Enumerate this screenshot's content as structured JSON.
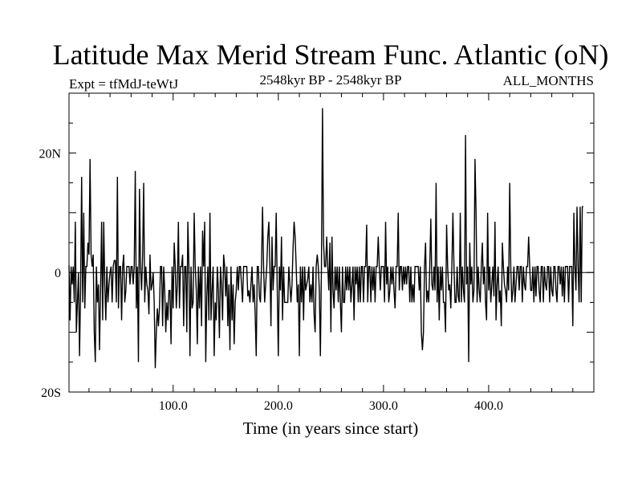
{
  "chart_data": {
    "type": "line",
    "title": "Latitude Max Merid Stream Func. Atlantic (oN)",
    "subtitle_left": "Expt = tfMdJ-teWtJ",
    "subtitle_center": "2548kyr BP - 2548kyr BP",
    "subtitle_right": "ALL_MONTHS",
    "xlabel": "Time (in years since start)",
    "ylabel": "",
    "xlim": [
      1,
      500
    ],
    "ylim": [
      -20,
      30
    ],
    "x_ticks": [
      100,
      200,
      300,
      400
    ],
    "x_tick_labels": [
      "100.0",
      "200.0",
      "300.0",
      "400.0"
    ],
    "y_ticks": [
      20,
      0,
      -20
    ],
    "y_tick_labels": [
      "20N",
      "0",
      "20S"
    ],
    "color": "#000000",
    "series": [
      {
        "x_start": 1,
        "x_step": 1,
        "values": [
          1.2,
          -8,
          1,
          -2,
          1,
          -5,
          8.5,
          -10,
          -5,
          0,
          -14,
          -3,
          16,
          -5,
          10,
          -6,
          1,
          1,
          5,
          3,
          19,
          3,
          1,
          3,
          -10,
          -15,
          1,
          -5,
          -2,
          -13,
          -3,
          8.5,
          -8,
          8.5,
          -2,
          -8,
          1,
          -5,
          -2,
          0,
          1,
          -5,
          1,
          2,
          2,
          -5,
          16,
          -6,
          1,
          1,
          -8,
          1,
          3,
          -5,
          -3,
          1,
          1,
          1,
          -2,
          1,
          1,
          -2,
          1,
          17,
          -6,
          1,
          -15,
          14,
          1,
          -3,
          3,
          15,
          -5,
          1,
          -2,
          -3,
          -7,
          3,
          -3,
          -2,
          0,
          -5,
          -16,
          -10,
          -6,
          -9,
          -6,
          1,
          1,
          -9,
          1,
          -3,
          -10,
          -5,
          -8,
          -3,
          -3,
          -12,
          1,
          -6,
          5,
          1,
          -6,
          -2,
          8.5,
          -6,
          1,
          1,
          3,
          -9,
          1,
          1,
          -10,
          8.5,
          1,
          -14,
          1,
          -6,
          -5,
          10,
          1,
          -3,
          -12,
          1,
          -6,
          1,
          -9,
          7,
          1,
          8.5,
          -15,
          -4,
          1,
          -8,
          10,
          -8,
          -3,
          1,
          -14,
          -5,
          -8,
          1,
          -3,
          -11,
          1,
          -2,
          -8,
          3,
          1,
          -4,
          1,
          -9,
          -2,
          -13,
          1,
          -8,
          -2,
          -12,
          -5,
          -3,
          1,
          -3,
          1,
          1,
          -2,
          -5,
          1,
          1,
          1,
          1,
          -4,
          -3,
          -5,
          -2,
          1,
          -5,
          -2,
          -7,
          -14,
          1,
          1,
          -4,
          -5,
          1,
          11,
          1,
          -5,
          -2,
          1,
          6,
          8.5,
          1,
          -9,
          6,
          -3,
          1,
          1,
          10,
          -3,
          -14,
          1,
          -3,
          6,
          -8,
          1,
          -5,
          -5,
          -5,
          -5,
          1,
          -2,
          -5,
          -2,
          4,
          8.5,
          6,
          1,
          -5,
          -2,
          -14,
          1,
          -5,
          1,
          -8,
          1,
          -3,
          -2,
          -1,
          1,
          -5,
          -2,
          -5,
          1,
          -7,
          -10,
          1,
          3,
          1,
          -3,
          -14,
          1,
          27.5,
          5,
          1,
          1,
          6,
          1,
          -3,
          5,
          -10,
          6,
          -3,
          -6,
          1,
          -3,
          1,
          -5,
          1,
          -5,
          -10,
          1,
          -5,
          -5,
          1,
          -3,
          1,
          -3,
          1,
          -5,
          -2,
          1,
          -8,
          1,
          -2,
          1,
          -5,
          1,
          -5,
          1,
          1,
          -5,
          1,
          1,
          8,
          -5,
          1,
          1,
          -5,
          1,
          -3,
          1,
          -5,
          1,
          1,
          6,
          1,
          -3,
          1,
          1,
          1,
          -5,
          8.5,
          -2,
          1,
          -5,
          -3,
          1,
          -2,
          1,
          -3,
          -6,
          1,
          1,
          10,
          -3,
          1,
          1,
          -3,
          1,
          -2,
          1,
          -2,
          1,
          1,
          -5,
          1,
          -5,
          -2,
          -5,
          1,
          1,
          1,
          1,
          -3,
          1,
          -10,
          -13,
          -10,
          1,
          5,
          -5,
          -3,
          -5,
          1,
          9,
          -2,
          -3,
          1,
          -3,
          15,
          -5,
          1,
          -8,
          1,
          -3,
          1,
          -5,
          -5,
          -10,
          8,
          1,
          -3,
          -2,
          -6,
          1,
          10,
          1,
          -5,
          -5,
          1,
          -4,
          -5,
          10,
          -5,
          1,
          -3,
          -5,
          23,
          -2,
          1,
          -15,
          5,
          -2,
          1,
          -5,
          -3,
          19,
          10,
          -5,
          1,
          -3,
          -5,
          1,
          5,
          -2,
          1,
          -5,
          -8,
          10,
          -3,
          1,
          -5,
          -2,
          1,
          -4,
          8.5,
          -8,
          -2,
          1,
          -5,
          -3,
          -9,
          5,
          1,
          -2,
          -3,
          -5,
          1,
          -3,
          15,
          1,
          -5,
          -3,
          1,
          -5,
          -2,
          1,
          1,
          -3,
          1,
          1,
          -5,
          1,
          -2,
          -3,
          1,
          1,
          6,
          1,
          -3,
          -3,
          1,
          -5,
          1,
          -4,
          1,
          1,
          -3,
          -5,
          1,
          1,
          -5,
          1,
          -2,
          -3,
          1,
          1,
          -5,
          1,
          -3,
          -4,
          1,
          1,
          -3,
          -5,
          1,
          1,
          -2,
          1,
          -4,
          1,
          -5,
          1,
          1,
          1,
          -5,
          1,
          1,
          1,
          -9,
          10,
          1,
          -3,
          11,
          1,
          -5,
          11,
          -5,
          11,
          11
        ]
      }
    ]
  }
}
